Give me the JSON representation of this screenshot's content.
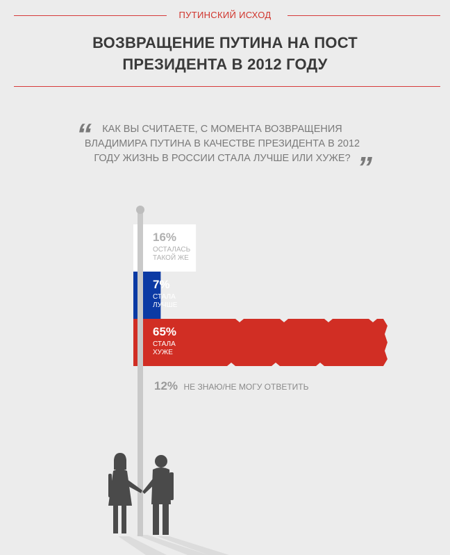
{
  "header": {
    "kicker": "ПУТИНСКИЙ ИСХОД",
    "title_lines": [
      "ВОЗВРАЩЕНИЕ ПУТИНА НА ПОСТ",
      "ПРЕЗИДЕНТА В 2012 ГОДУ"
    ]
  },
  "question": {
    "lines": [
      "КАК ВЫ СЧИТАЕТЕ, С МОМЕНТА ВОЗВРАЩЕНИЯ",
      "ВЛАДИМИРА ПУТИНА В КАЧЕСТВЕ ПРЕЗИДЕНТА В 2012",
      "ГОДУ ЖИЗНЬ В РОССИИ СТАЛА ЛУЧШЕ ИЛИ ХУЖЕ?"
    ]
  },
  "colors": {
    "white_band": "#ffffff",
    "blue_band": "#0b3aa4",
    "red_band": "#d12e24",
    "accent_line": "#d63a3a",
    "pole": "#c9c9c9",
    "silhouette": "#4a4a4a"
  },
  "icons": [
    "flagpole-icon",
    "couple-silhouette-icon",
    "quote-mark-icon"
  ],
  "chart_data": {
    "type": "bar",
    "orientation": "horizontal",
    "categories": [
      "ОСТАЛАСЬ ТАКОЙ ЖЕ",
      "СТАЛА ЛУЧШЕ",
      "СТАЛА ХУЖЕ",
      "НЕ ЗНАЮ/НЕ МОГУ ОТВЕТИТЬ"
    ],
    "values": [
      16,
      7,
      65,
      12
    ],
    "labels": [
      {
        "pct": "16%",
        "lines": [
          "ОСТАЛАСЬ",
          "ТАКОЙ ЖЕ"
        ]
      },
      {
        "pct": "7%",
        "lines": [
          "СТАЛА",
          "ЛУЧШЕ"
        ]
      },
      {
        "pct": "65%",
        "lines": [
          "СТАЛА",
          "ХУЖЕ"
        ]
      }
    ],
    "note": {
      "pct": "12%",
      "text": "НЕ ЗНАЮ/НЕ МОГУ ОТВЕТИТЬ"
    },
    "units": "%"
  }
}
